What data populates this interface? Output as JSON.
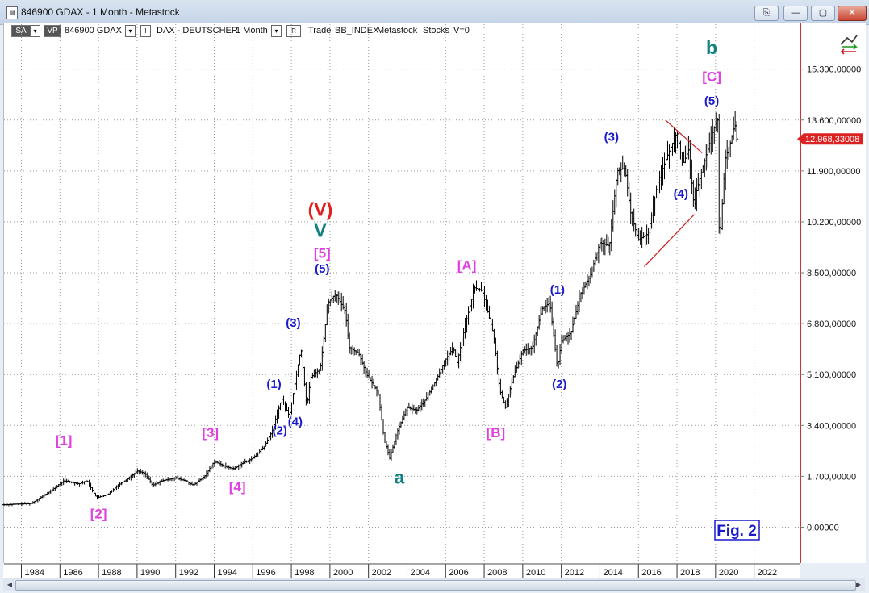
{
  "window": {
    "title": "846900 GDAX - 1 Month - Metastock",
    "min_glyph": "—",
    "restore_glyph": "▢",
    "close_glyph": "✕",
    "extra_glyph": "⎘"
  },
  "toolbar": {
    "sa_label": "SA",
    "vp_label": "VP",
    "symbol": "846900 GDAX",
    "i_label": "I",
    "security": "DAX - DEUTSCHER",
    "period": "1 Month",
    "r_label": "R",
    "trade": "Trade",
    "index": "BB_INDEX",
    "source": "Metastock",
    "stocks": "Stocks",
    "volume": "V=0",
    "dropdown_glyph": "▾"
  },
  "chart_data": {
    "type": "candlestick",
    "y_ticks": [
      "15.300,00000",
      "13.600,00000",
      "11.900,00000",
      "10.200,00000",
      "8.500,00000",
      "6.800,00000",
      "5.100,00000",
      "3.400,00000",
      "1.700,00000",
      "0,00000"
    ],
    "y_tick_values": [
      15300,
      13600,
      11900,
      10200,
      8500,
      6800,
      5100,
      3400,
      1700,
      0
    ],
    "ylim": [
      -1200,
      16800
    ],
    "x_ticks": [
      "1984",
      "1986",
      "1988",
      "1990",
      "1992",
      "1994",
      "1996",
      "1998",
      "2000",
      "2002",
      "2004",
      "2006",
      "2008",
      "2010",
      "2012",
      "2014",
      "2016",
      "2018",
      "2020",
      "2022"
    ],
    "xlim": [
      1983.1,
      2024.4
    ],
    "current_price": "12.968,33008",
    "current_value": 12968,
    "grid": true,
    "path": [
      [
        1983.1,
        750
      ],
      [
        1984.5,
        790
      ],
      [
        1985.5,
        1200
      ],
      [
        1986.2,
        1550
      ],
      [
        1987.0,
        1450
      ],
      [
        1987.4,
        1560
      ],
      [
        1987.9,
        980
      ],
      [
        1988.5,
        1100
      ],
      [
        1989.0,
        1400
      ],
      [
        1989.6,
        1650
      ],
      [
        1990.0,
        1880
      ],
      [
        1990.4,
        1800
      ],
      [
        1990.8,
        1400
      ],
      [
        1991.3,
        1550
      ],
      [
        1992.0,
        1650
      ],
      [
        1992.5,
        1550
      ],
      [
        1992.9,
        1400
      ],
      [
        1993.5,
        1700
      ],
      [
        1994.0,
        2200
      ],
      [
        1994.5,
        2050
      ],
      [
        1995.0,
        1950
      ],
      [
        1995.5,
        2150
      ],
      [
        1996.0,
        2300
      ],
      [
        1996.6,
        2700
      ],
      [
        1997.0,
        3200
      ],
      [
        1997.5,
        4300
      ],
      [
        1997.9,
        3700
      ],
      [
        1998.5,
        6000
      ],
      [
        1998.8,
        4000
      ],
      [
        1999.0,
        5000
      ],
      [
        1999.5,
        5300
      ],
      [
        1999.9,
        7500
      ],
      [
        2000.3,
        7800
      ],
      [
        2000.8,
        7200
      ],
      [
        2001.0,
        6000
      ],
      [
        2001.5,
        5800
      ],
      [
        2001.9,
        5100
      ],
      [
        2002.5,
        4500
      ],
      [
        2002.8,
        3000
      ],
      [
        2003.1,
        2300
      ],
      [
        2003.5,
        3200
      ],
      [
        2004.0,
        4000
      ],
      [
        2004.5,
        3900
      ],
      [
        2005.0,
        4300
      ],
      [
        2005.5,
        4900
      ],
      [
        2006.0,
        5600
      ],
      [
        2006.4,
        6000
      ],
      [
        2006.6,
        5500
      ],
      [
        2007.0,
        6700
      ],
      [
        2007.5,
        8000
      ],
      [
        2007.9,
        7900
      ],
      [
        2008.5,
        6400
      ],
      [
        2008.8,
        4600
      ],
      [
        2009.1,
        4000
      ],
      [
        2009.5,
        5000
      ],
      [
        2010.0,
        5900
      ],
      [
        2010.5,
        6000
      ],
      [
        2011.0,
        7300
      ],
      [
        2011.4,
        7500
      ],
      [
        2011.8,
        5300
      ],
      [
        2012.0,
        6200
      ],
      [
        2012.5,
        6500
      ],
      [
        2013.0,
        7800
      ],
      [
        2013.5,
        8400
      ],
      [
        2014.0,
        9500
      ],
      [
        2014.5,
        9400
      ],
      [
        2014.9,
        11900
      ],
      [
        2015.3,
        12000
      ],
      [
        2015.6,
        10500
      ],
      [
        2016.0,
        9600
      ],
      [
        2016.5,
        9800
      ],
      [
        2017.0,
        11500
      ],
      [
        2017.5,
        12400
      ],
      [
        2018.0,
        13200
      ],
      [
        2018.3,
        12100
      ],
      [
        2018.6,
        12600
      ],
      [
        2018.9,
        10600
      ],
      [
        2019.0,
        11200
      ],
      [
        2019.5,
        12400
      ],
      [
        2019.9,
        13300
      ],
      [
        2020.1,
        13600
      ],
      [
        2020.2,
        9300
      ],
      [
        2020.5,
        12300
      ],
      [
        2020.8,
        12900
      ],
      [
        2021.0,
        13500
      ],
      [
        2021.1,
        12968
      ]
    ],
    "annotations": [
      {
        "text": "[1]",
        "x": 1986.2,
        "y": 2750,
        "color": "#e040e0"
      },
      {
        "text": "[2]",
        "x": 1988.0,
        "y": 300,
        "color": "#e040e0"
      },
      {
        "text": "[3]",
        "x": 1993.8,
        "y": 3000,
        "color": "#e040e0"
      },
      {
        "text": "[4]",
        "x": 1995.2,
        "y": 1200,
        "color": "#e040e0"
      },
      {
        "text": "[5]",
        "x": 1999.6,
        "y": 9000,
        "color": "#e040e0"
      },
      {
        "text": "(1)",
        "x": 1997.1,
        "y": 4650,
        "color": "#1a1acc"
      },
      {
        "text": "(2)",
        "x": 1997.4,
        "y": 3100,
        "color": "#1a1acc"
      },
      {
        "text": "(3)",
        "x": 1998.1,
        "y": 6700,
        "color": "#1a1acc"
      },
      {
        "text": "(4)",
        "x": 1998.2,
        "y": 3400,
        "color": "#1a1acc"
      },
      {
        "text": "(5)",
        "x": 1999.6,
        "y": 8500,
        "color": "#1a1acc"
      },
      {
        "text": "(V)",
        "x": 1999.5,
        "y": 10400,
        "color": "#e02020"
      },
      {
        "text": "V",
        "x": 1999.5,
        "y": 9700,
        "color": "#108080"
      },
      {
        "text": "a",
        "x": 2003.6,
        "y": 1450,
        "color": "#108080"
      },
      {
        "text": "[A]",
        "x": 2007.1,
        "y": 8600,
        "color": "#e040e0"
      },
      {
        "text": "[B]",
        "x": 2008.6,
        "y": 3000,
        "color": "#e040e0"
      },
      {
        "text": "(1)",
        "x": 2011.8,
        "y": 7800,
        "color": "#1a1acc"
      },
      {
        "text": "(2)",
        "x": 2011.9,
        "y": 4650,
        "color": "#1a1acc"
      },
      {
        "text": "(3)",
        "x": 2014.6,
        "y": 12900,
        "color": "#1a1acc"
      },
      {
        "text": "(4)",
        "x": 2018.2,
        "y": 11000,
        "color": "#1a1acc"
      },
      {
        "text": "(5)",
        "x": 2019.8,
        "y": 14100,
        "color": "#1a1acc"
      },
      {
        "text": "[C]",
        "x": 2019.8,
        "y": 14900,
        "color": "#e040e0"
      },
      {
        "text": "b",
        "x": 2019.8,
        "y": 15800,
        "color": "#108080"
      }
    ],
    "trendlines": [
      {
        "from": [
          2016.3,
          8700
        ],
        "to": [
          2018.9,
          10450
        ]
      },
      {
        "from": [
          2017.4,
          13600
        ],
        "to": [
          2019.3,
          12500
        ]
      }
    ],
    "fig_label": "Fig. 2"
  }
}
